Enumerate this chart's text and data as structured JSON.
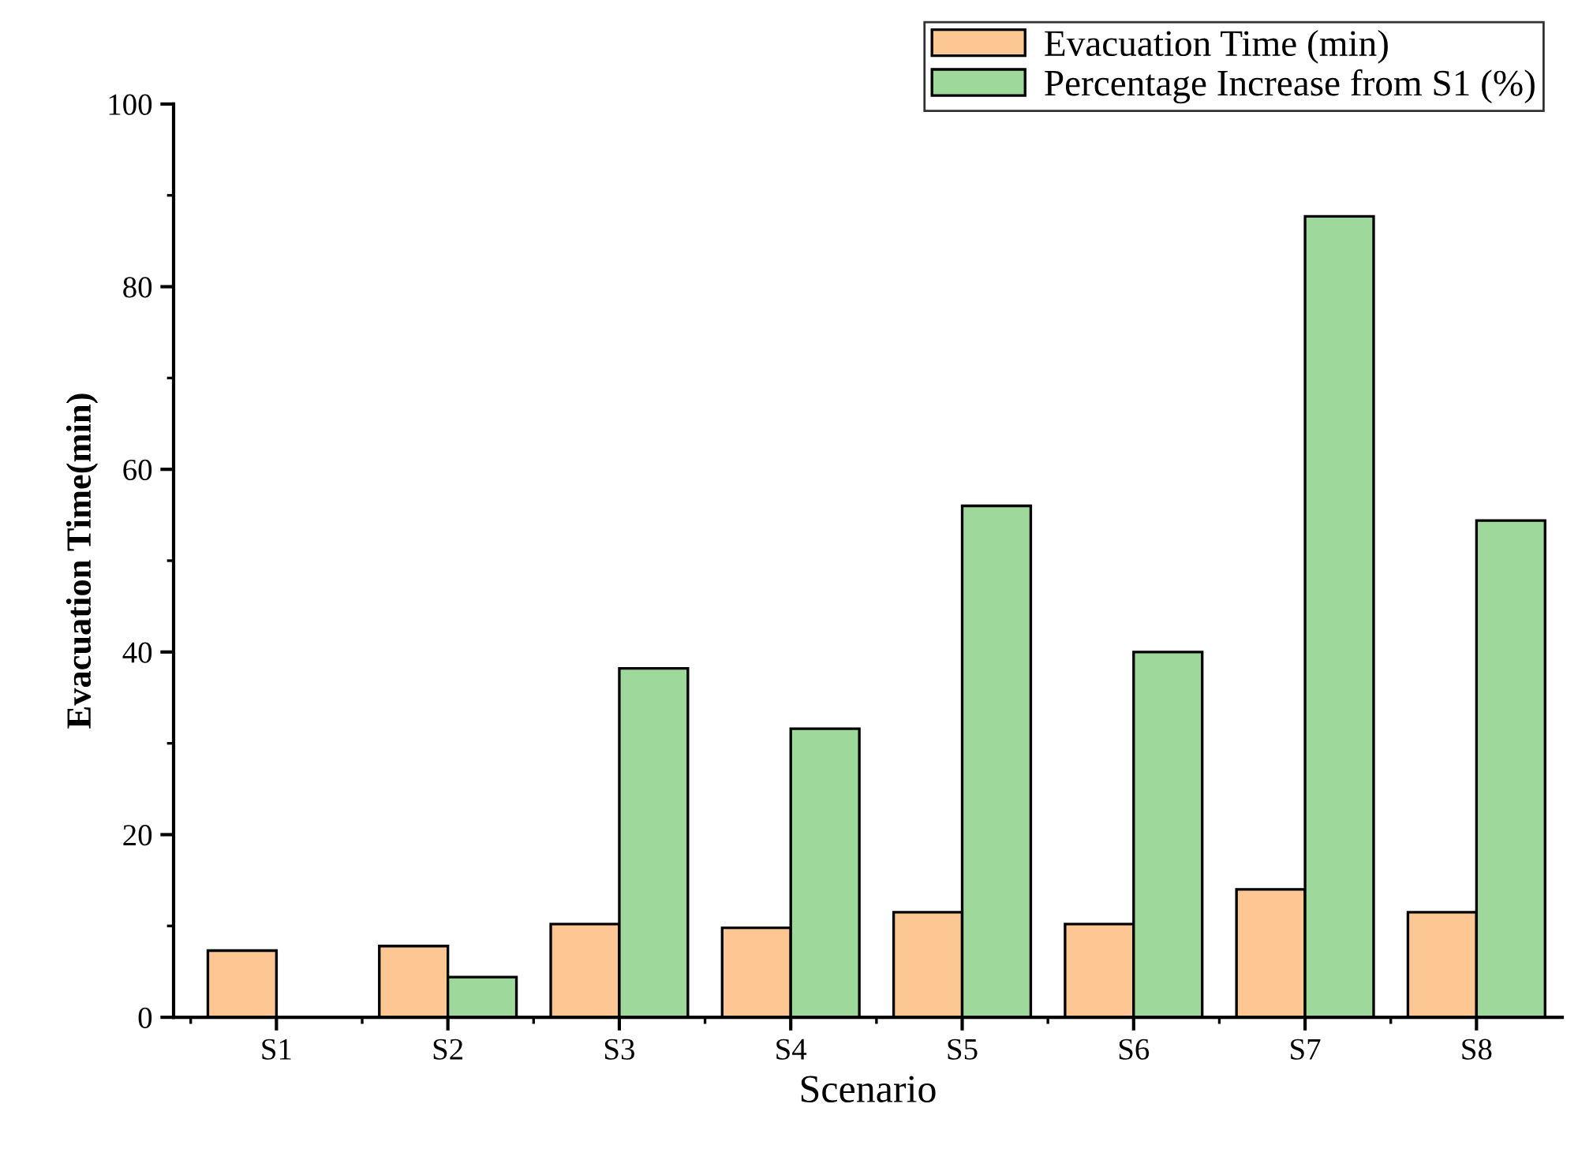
{
  "chart_data": {
    "type": "bar",
    "xlabel": "Scenario",
    "ylabel": "Evacuation Time(min)",
    "categories": [
      "S1",
      "S2",
      "S3",
      "S4",
      "S5",
      "S6",
      "S7",
      "S8"
    ],
    "series": [
      {
        "name": "Evacuation Time (min)",
        "color": "#fdc793",
        "values": [
          7.3,
          7.8,
          10.2,
          9.8,
          11.5,
          10.2,
          14.0,
          11.5
        ]
      },
      {
        "name": "Percentage Increase from S1 (%)",
        "color": "#9ed89a",
        "values": [
          null,
          4.4,
          38.2,
          31.6,
          56.0,
          40.0,
          87.7,
          54.4
        ]
      }
    ],
    "ylim": [
      0,
      100
    ],
    "yticks": [
      0,
      20,
      40,
      60,
      80,
      100
    ],
    "grid": false,
    "legend": "top right"
  }
}
